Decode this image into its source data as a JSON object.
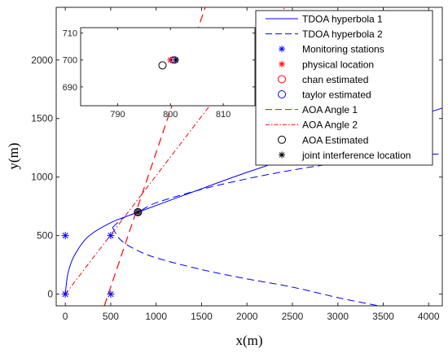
{
  "chart_data": {
    "type": "line",
    "xlabel": "x(m)",
    "ylabel": "y(m)",
    "xlim": [
      -100,
      4150
    ],
    "ylim": [
      -100,
      2450
    ],
    "xticks": [
      0,
      500,
      1000,
      1500,
      2000,
      2500,
      3000,
      3500,
      4000
    ],
    "yticks": [
      0,
      500,
      1000,
      1500,
      2000
    ],
    "grid": false,
    "legend_position": "top-right",
    "legend": [
      "TDOA hyperbola 1",
      "TDOA hyperbola 2",
      "Monitoring stations",
      "physical location",
      "chan estimated",
      "taylor estimated",
      "AOA Angle 1",
      "AOA Angle 2",
      "AOA Estimated",
      "joint interference location"
    ],
    "colors": {
      "blue": "#0000ff",
      "red": "#ff0000",
      "black": "#000000"
    },
    "monitoring_stations": [
      [
        0,
        0
      ],
      [
        0,
        500
      ],
      [
        500,
        500
      ],
      [
        500,
        0
      ]
    ],
    "physical_location": [
      800,
      700
    ],
    "hyperbola_1": {
      "vertex": [
        0,
        0
      ],
      "points": [
        [
          0,
          0
        ],
        [
          30,
          180
        ],
        [
          100,
          330
        ],
        [
          250,
          490
        ],
        [
          500,
          610
        ],
        [
          800,
          700
        ],
        [
          1500,
          900
        ],
        [
          2000,
          1040
        ],
        [
          3000,
          1300
        ],
        [
          4150,
          1590
        ]
      ]
    },
    "hyperbola_2": {
      "upper": [
        [
          520,
          570
        ],
        [
          650,
          655
        ],
        [
          800,
          700
        ],
        [
          1000,
          780
        ],
        [
          1500,
          895
        ],
        [
          2000,
          985
        ],
        [
          2500,
          1060
        ],
        [
          3000,
          1120
        ],
        [
          3500,
          1165
        ],
        [
          4150,
          1200
        ]
      ],
      "lower": [
        [
          520,
          570
        ],
        [
          600,
          470
        ],
        [
          750,
          390
        ],
        [
          1000,
          310
        ],
        [
          1500,
          210
        ],
        [
          2000,
          130
        ],
        [
          2500,
          60
        ],
        [
          3000,
          -30
        ],
        [
          3450,
          -100
        ]
      ]
    },
    "aoa_angle_1": [
      [
        430,
        -100
      ],
      [
        1540,
        2450
      ]
    ],
    "aoa_angle_2": [
      [
        0,
        0
      ],
      [
        2420,
        2450
      ]
    ],
    "inset": {
      "xlim": [
        783,
        816
      ],
      "ylim": [
        683,
        712
      ],
      "xticks": [
        790,
        800,
        810
      ],
      "yticks": [
        690,
        700,
        710
      ],
      "physical_location": [
        800,
        700
      ],
      "chan_estimated": [
        800.5,
        700
      ],
      "taylor_estimated": [
        800.8,
        700
      ],
      "aoa_estimated": [
        798.5,
        698
      ],
      "joint_interference_location": [
        801,
        700
      ]
    }
  }
}
